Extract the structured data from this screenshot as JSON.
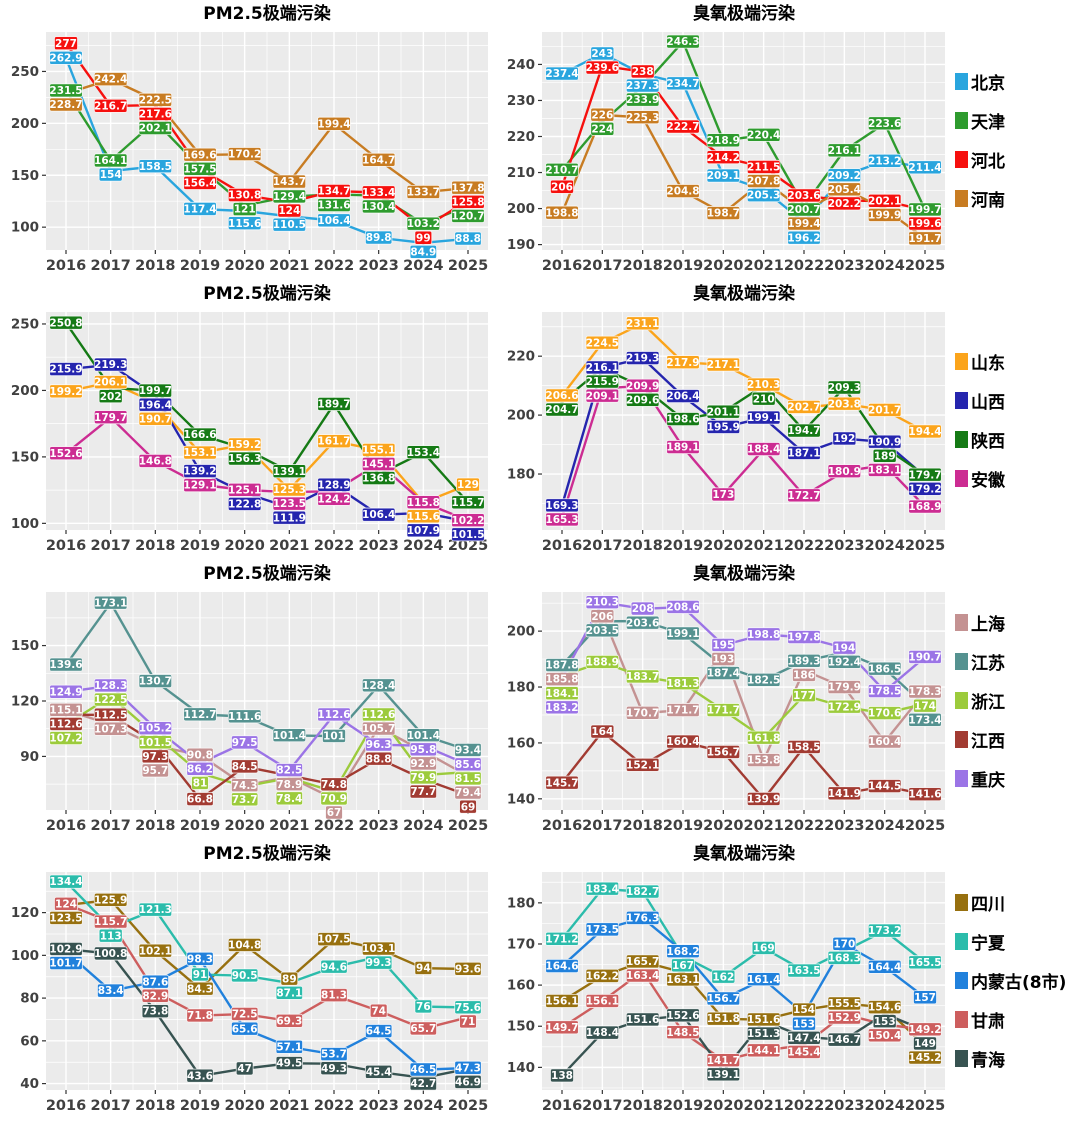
{
  "chart_data": {
    "type": "line",
    "years": [
      "2016",
      "2017",
      "2018",
      "2019",
      "2020",
      "2021",
      "2022",
      "2023",
      "2024",
      "2025"
    ],
    "rows": [
      {
        "charts": [
          {
            "title": "PM2.5极端污染",
            "yticks": [
              100,
              150,
              200,
              250
            ],
            "ylim": [
              78,
              288
            ],
            "series": [
              {
                "name": "北京",
                "color": "#29A5DE",
                "values": [
                  262.9,
                  154,
                  158.5,
                  117.4,
                  115.6,
                  110.5,
                  106.4,
                  89.8,
                  84.9,
                  88.8
                ]
              },
              {
                "name": "天津",
                "color": "#2E9B2E",
                "values": [
                  231.5,
                  164.1,
                  202.1,
                  157.5,
                  121,
                  129.4,
                  131.6,
                  130.4,
                  103.2,
                  120.7
                ]
              },
              {
                "name": "河北",
                "color": "#F6100E",
                "values": [
                  277,
                  216.7,
                  217.6,
                  156.4,
                  130.8,
                  124,
                  134.7,
                  133.4,
                  99,
                  125.8
                ]
              },
              {
                "name": "河南",
                "color": "#C87C22",
                "values": [
                  228.7,
                  242.4,
                  222.5,
                  169.6,
                  170.2,
                  143.7,
                  199.4,
                  164.7,
                  133.7,
                  137.8
                ]
              }
            ]
          },
          {
            "title": "臭氧极端污染",
            "yticks": [
              190,
              200,
              210,
              220,
              230,
              240
            ],
            "ylim": [
              188.5,
              249
            ],
            "series": [
              {
                "name": "北京",
                "color": "#29A5DE",
                "values": [
                  237.4,
                  243,
                  237.3,
                  234.7,
                  209.1,
                  205.3,
                  196.2,
                  209.2,
                  213.2,
                  211.4
                ]
              },
              {
                "name": "天津",
                "color": "#2E9B2E",
                "values": [
                  210.7,
                  224,
                  233.9,
                  246.3,
                  218.9,
                  220.4,
                  200.7,
                  216.1,
                  223.6,
                  199.7
                ]
              },
              {
                "name": "河北",
                "color": "#F6100E",
                "values": [
                  206,
                  239.6,
                  238,
                  222.7,
                  214.2,
                  211.5,
                  203.6,
                  202.2,
                  202.1,
                  199.6
                ]
              },
              {
                "name": "河南",
                "color": "#C87C22",
                "values": [
                  198.8,
                  226,
                  225.3,
                  204.8,
                  198.7,
                  207.8,
                  199.4,
                  205.4,
                  199.9,
                  191.7
                ]
              }
            ]
          }
        ]
      },
      {
        "charts": [
          {
            "title": "PM2.5极端污染",
            "yticks": [
              100,
              150,
              200,
              250
            ],
            "ylim": [
              95,
              259
            ],
            "series": [
              {
                "name": "山东",
                "color": "#FBA41B",
                "values": [
                  199.2,
                  206.1,
                  190.7,
                  153.1,
                  159.2,
                  125.3,
                  161.7,
                  155.1,
                  115.6,
                  129
                ]
              },
              {
                "name": "山西",
                "color": "#2525AE",
                "values": [
                  215.9,
                  219.3,
                  196.4,
                  139.2,
                  122.8,
                  111.9,
                  128.9,
                  106.4,
                  107.9,
                  101.5
                ]
              },
              {
                "name": "陕西",
                "color": "#157A15",
                "values": [
                  250.8,
                  202,
                  199.7,
                  166.6,
                  156.3,
                  139.1,
                  189.7,
                  136.8,
                  153.4,
                  115.7
                ]
              },
              {
                "name": "安徽",
                "color": "#CC2C92",
                "values": [
                  152.6,
                  179.7,
                  146.8,
                  129.1,
                  125.1,
                  123.5,
                  124.2,
                  145.1,
                  115.8,
                  102.2
                ]
              }
            ]
          },
          {
            "title": "臭氧极端污染",
            "yticks": [
              180,
              200,
              220
            ],
            "ylim": [
              161,
              235
            ],
            "series": [
              {
                "name": "山东",
                "color": "#FBA41B",
                "values": [
                  206.6,
                  224.5,
                  231.1,
                  217.9,
                  217.1,
                  210.3,
                  202.7,
                  203.8,
                  201.7,
                  194.4
                ]
              },
              {
                "name": "山西",
                "color": "#2525AE",
                "values": [
                  169.3,
                  216.1,
                  219.3,
                  206.4,
                  195.9,
                  199.1,
                  187.1,
                  192,
                  190.9,
                  179.2
                ]
              },
              {
                "name": "陕西",
                "color": "#157A15",
                "values": [
                  204.7,
                  215.9,
                  209.6,
                  198.6,
                  201.1,
                  210,
                  194.7,
                  209.3,
                  189,
                  179.7
                ]
              },
              {
                "name": "安徽",
                "color": "#CC2C92",
                "values": [
                  165.3,
                  209.1,
                  209.9,
                  189.1,
                  173,
                  188.4,
                  172.7,
                  180.9,
                  183.1,
                  168.9
                ]
              }
            ]
          }
        ]
      },
      {
        "charts": [
          {
            "title": "PM2.5极端污染",
            "yticks": [
              90,
              120,
              150
            ],
            "ylim": [
              61,
              179
            ],
            "series": [
              {
                "name": "上海",
                "color": "#C49292",
                "values": [
                  115.1,
                  107.3,
                  95.7,
                  90.8,
                  74.3,
                  78.9,
                  67,
                  105.7,
                  92.9,
                  79.4
                ]
              },
              {
                "name": "江苏",
                "color": "#559290",
                "values": [
                  139.6,
                  173.1,
                  130.7,
                  112.7,
                  111.6,
                  101.4,
                  101,
                  128.4,
                  101.4,
                  93.4
                ]
              },
              {
                "name": "浙江",
                "color": "#9CCB3C",
                "values": [
                  107.2,
                  122.5,
                  101.5,
                  81,
                  73.7,
                  78.4,
                  70.9,
                  112.6,
                  79.9,
                  81.5
                ]
              },
              {
                "name": "江西",
                "color": "#A23B32",
                "values": [
                  112.6,
                  112.5,
                  97.3,
                  66.8,
                  84.5,
                  79.6,
                  74.8,
                  88.8,
                  77.7,
                  69
                ],
                "no_label": [
                  5
                ]
              },
              {
                "name": "重庆",
                "color": "#9B74E6",
                "values": [
                  124.9,
                  128.3,
                  105.2,
                  86.2,
                  97.5,
                  82.5,
                  112.6,
                  96.3,
                  95.8,
                  85.6
                ]
              }
            ]
          },
          {
            "title": "臭氧极端污染",
            "yticks": [
              140,
              160,
              180,
              200
            ],
            "ylim": [
              136,
              214
            ],
            "series": [
              {
                "name": "上海",
                "color": "#C49292",
                "values": [
                  185.8,
                  206,
                  170.7,
                  171.7,
                  193,
                  153.8,
                  186,
                  179.9,
                  160.4,
                  178.3
                ]
              },
              {
                "name": "江苏",
                "color": "#559290",
                "values": [
                  187.8,
                  203.5,
                  203.6,
                  199.1,
                  187.4,
                  182.5,
                  189.3,
                  192.4,
                  186.5,
                  173.4
                ]
              },
              {
                "name": "浙江",
                "color": "#9CCB3C",
                "values": [
                  184.1,
                  188.9,
                  183.7,
                  181.3,
                  171.7,
                  161.8,
                  177,
                  172.9,
                  170.6,
                  174
                ]
              },
              {
                "name": "江西",
                "color": "#A23B32",
                "values": [
                  145.7,
                  164,
                  152.1,
                  160.4,
                  156.7,
                  139.9,
                  158.5,
                  141.9,
                  144.5,
                  141.6
                ]
              },
              {
                "name": "重庆",
                "color": "#9B74E6",
                "values": [
                  183.2,
                  210.3,
                  208,
                  208.6,
                  195,
                  198.8,
                  197.8,
                  194,
                  178.5,
                  190.7
                ]
              }
            ]
          }
        ]
      },
      {
        "charts": [
          {
            "title": "PM2.5极端污染",
            "yticks": [
              40,
              60,
              80,
              100,
              120
            ],
            "ylim": [
              37,
              139
            ],
            "series": [
              {
                "name": "四川",
                "color": "#97700F",
                "values": [
                  123.5,
                  125.9,
                  102.1,
                  84.3,
                  104.8,
                  89,
                  107.5,
                  103.1,
                  94,
                  93.6
                ]
              },
              {
                "name": "宁夏",
                "color": "#2BBCAB",
                "values": [
                  134.4,
                  113,
                  121.3,
                  91,
                  90.5,
                  87.1,
                  94.6,
                  99.3,
                  76,
                  75.6
                ]
              },
              {
                "name": "内蒙古(8市)",
                "color": "#2181DC",
                "values": [
                  101.7,
                  83.4,
                  87.6,
                  98.3,
                  65.6,
                  57.1,
                  53.7,
                  64.5,
                  46.5,
                  47.3
                ]
              },
              {
                "name": "甘肃",
                "color": "#CD5E5E",
                "values": [
                  124,
                  115.7,
                  82.9,
                  71.8,
                  72.5,
                  69.3,
                  81.3,
                  74,
                  65.7,
                  71
                ]
              },
              {
                "name": "青海",
                "color": "#375351",
                "values": [
                  102.9,
                  100.8,
                  73.8,
                  43.6,
                  47,
                  49.5,
                  49.3,
                  45.4,
                  42.7,
                  46.9
                ]
              }
            ]
          },
          {
            "title": "臭氧极端污染",
            "yticks": [
              140,
              150,
              160,
              170,
              180
            ],
            "ylim": [
              134.5,
              187.5
            ],
            "series": [
              {
                "name": "四川",
                "color": "#97700F",
                "values": [
                  156.1,
                  162.2,
                  165.7,
                  163.1,
                  151.8,
                  151.6,
                  154,
                  155.5,
                  154.6,
                  145.2
                ]
              },
              {
                "name": "宁夏",
                "color": "#2BBCAB",
                "values": [
                  171.2,
                  183.4,
                  182.7,
                  167,
                  162,
                  169,
                  163.5,
                  168.3,
                  173.2,
                  165.5
                ]
              },
              {
                "name": "内蒙古(8市)",
                "color": "#2181DC",
                "values": [
                  164.6,
                  173.5,
                  176.3,
                  168.2,
                  156.7,
                  161.4,
                  153,
                  170,
                  164.4,
                  157
                ]
              },
              {
                "name": "甘肃",
                "color": "#CD5E5E",
                "values": [
                  149.7,
                  156.1,
                  163.4,
                  148.5,
                  141.7,
                  144.1,
                  145.4,
                  152.9,
                  150.4,
                  149.2
                ]
              },
              {
                "name": "青海",
                "color": "#375351",
                "values": [
                  138,
                  148.4,
                  151.6,
                  152.6,
                  139.1,
                  151.3,
                  147.4,
                  146.7,
                  153,
                  149
                ]
              }
            ]
          }
        ]
      }
    ]
  }
}
